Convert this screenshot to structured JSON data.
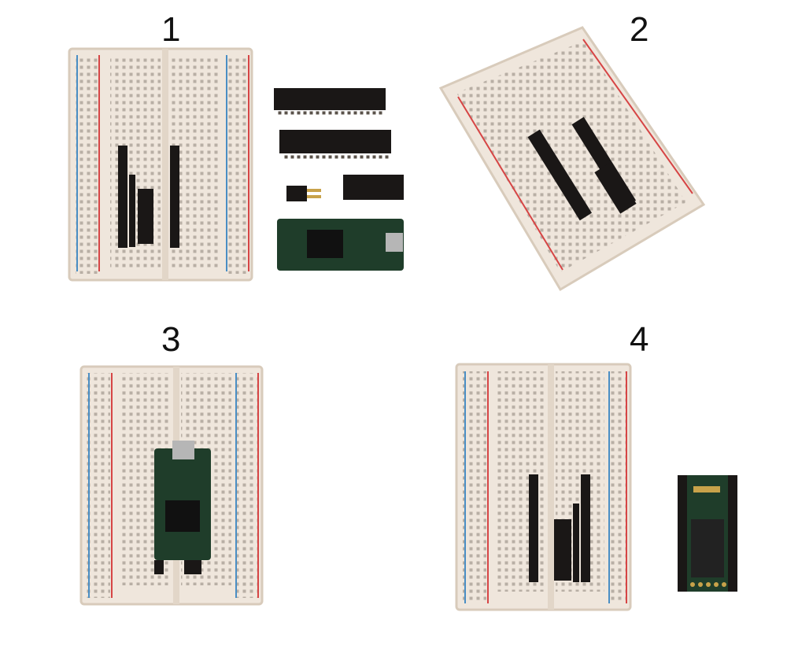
{
  "steps": [
    {
      "number": "1"
    },
    {
      "number": "2"
    },
    {
      "number": "3"
    },
    {
      "number": "4"
    }
  ],
  "colors": {
    "board": "#efe6dc",
    "board_edge": "#d8cbbb",
    "hole": "#8a8178",
    "rail_red": "#d64545",
    "rail_blue": "#4a8ec4",
    "header": "#1a1716",
    "pcb": "#1f3d2a",
    "gold": "#c8a24a"
  }
}
